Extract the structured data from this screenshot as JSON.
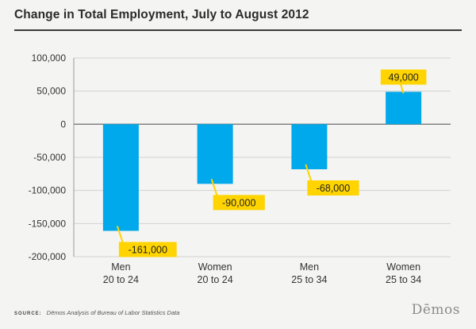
{
  "header": {
    "title": "Change in Total Employment, July to August 2012"
  },
  "footer": {
    "source_label": "SOURCE:",
    "source_text": "Dēmos Analysis of Bureau of Labor Statistics Data",
    "brand": "Dēmos"
  },
  "colors": {
    "bar": "#00a9ec",
    "label_bg": "#ffd400",
    "grid": "#d2d2d2",
    "zero_line": "#7a7a7a",
    "axis": "#9a9a9a",
    "text": "#333333"
  },
  "chart_data": {
    "type": "bar",
    "title": "Change in Total Employment, July to August 2012",
    "categories": [
      [
        "Men",
        "20 to 24"
      ],
      [
        "Women",
        "20 to 24"
      ],
      [
        "Men",
        "25 to 34"
      ],
      [
        "Women",
        "25 to 34"
      ]
    ],
    "values": [
      -161000,
      -90000,
      -68000,
      49000
    ],
    "data_labels": [
      "-161,000",
      "-90,000",
      "-68,000",
      "49,000"
    ],
    "yticks": [
      100000,
      50000,
      0,
      -50000,
      -100000,
      -150000,
      -200000
    ],
    "ytick_labels": [
      "100,000",
      "50,000",
      "0",
      "-50,000",
      "-100,000",
      "-150,000",
      "-200,000"
    ],
    "ylim": [
      -200000,
      100000
    ],
    "xlabel": "",
    "ylabel": "",
    "grid": true,
    "legend": "none"
  }
}
